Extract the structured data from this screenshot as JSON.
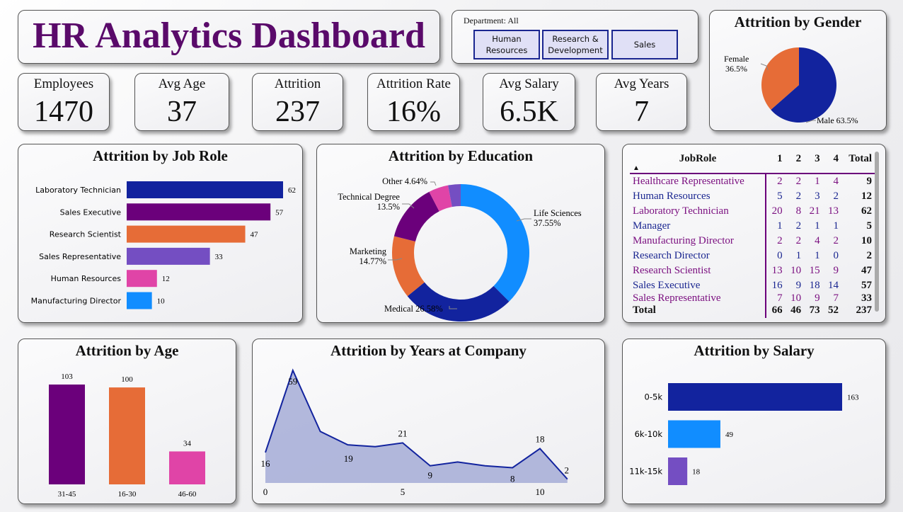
{
  "title": "HR Analytics Dashboard",
  "colors": {
    "dark_blue": "#12239e",
    "purple": "#6b007b",
    "orange": "#e66c37",
    "violet": "#744ec2",
    "pink": "#e044a7",
    "light_blue": "#118dff",
    "title_purple": "#5a0a6a"
  },
  "slicer": {
    "label": "Department: All",
    "options": [
      "Human Resources",
      "Research & Development",
      "Sales"
    ]
  },
  "kpis": [
    {
      "label": "Employees",
      "value": "1470"
    },
    {
      "label": "Avg Age",
      "value": "37"
    },
    {
      "label": "Attrition",
      "value": "237"
    },
    {
      "label": "Attrition Rate",
      "value": "16%"
    },
    {
      "label": "Avg Salary",
      "value": "6.5K"
    },
    {
      "label": "Avg Years",
      "value": "7"
    }
  ],
  "chart_data": [
    {
      "id": "gender",
      "type": "pie",
      "title": "Attrition by Gender",
      "slices": [
        {
          "label": "Male 63.5%",
          "name": "Male",
          "value": 63.5,
          "color": "#12239e"
        },
        {
          "label": "Female 36.5%",
          "name": "Female",
          "value": 36.5,
          "color": "#e66c37"
        }
      ]
    },
    {
      "id": "jobrole",
      "type": "bar",
      "orientation": "horizontal",
      "title": "Attrition by Job Role",
      "categories": [
        "Laboratory Technician",
        "Sales Executive",
        "Research Scientist",
        "Sales Representative",
        "Human Resources",
        "Manufacturing Director"
      ],
      "values": [
        62,
        57,
        47,
        33,
        12,
        10
      ],
      "colors": [
        "#12239e",
        "#6b007b",
        "#e66c37",
        "#744ec2",
        "#e044a7",
        "#118dff"
      ]
    },
    {
      "id": "education",
      "type": "pie",
      "donut": true,
      "title": "Attrition by Education",
      "slices": [
        {
          "name": "Life Sciences",
          "pct": "37.55%",
          "value": 37.55,
          "color": "#118dff"
        },
        {
          "name": "Medical",
          "pct": "26.58%",
          "value": 26.58,
          "color": "#12239e"
        },
        {
          "name": "Marketing",
          "pct": "14.77%",
          "value": 14.77,
          "color": "#e66c37"
        },
        {
          "name": "Technical Degree",
          "pct": "13.5%",
          "value": 13.5,
          "color": "#6b007b"
        },
        {
          "name": "Other",
          "pct": "4.64%",
          "value": 4.64,
          "color": "#e044a7"
        },
        {
          "name": "",
          "pct": "",
          "value": 2.96,
          "color": "#744ec2"
        }
      ]
    },
    {
      "id": "age",
      "type": "bar",
      "title": "Attrition by Age",
      "categories": [
        "31-45",
        "16-30",
        "46-60"
      ],
      "values": [
        103,
        100,
        34
      ],
      "colors": [
        "#6b007b",
        "#e66c37",
        "#e044a7"
      ]
    },
    {
      "id": "years",
      "type": "area",
      "title": "Attrition by Years at Company",
      "x": [
        0,
        1,
        2,
        3,
        4,
        5,
        6,
        7,
        8,
        9,
        10,
        11
      ],
      "y": [
        16,
        59,
        27,
        20,
        19,
        21,
        9,
        11,
        9,
        8,
        18,
        2
      ],
      "labels": {
        "0": "16",
        "1": "59",
        "4": "19",
        "5": "21",
        "6": "9",
        "9": "8",
        "10": "18",
        "11": "2"
      },
      "xticks": [
        0,
        5,
        10
      ]
    },
    {
      "id": "salary",
      "type": "bar",
      "orientation": "horizontal",
      "title": "Attrition by Salary",
      "categories": [
        "0-5k",
        "6k-10k",
        "11k-15k"
      ],
      "values": [
        163,
        49,
        18
      ],
      "colors": [
        "#12239e",
        "#118dff",
        "#744ec2"
      ]
    }
  ],
  "table": {
    "headers": [
      "JobRole",
      "1",
      "2",
      "3",
      "4",
      "Total"
    ],
    "rows": [
      [
        "Healthcare Representative",
        "2",
        "2",
        "1",
        "4",
        "9"
      ],
      [
        "Human Resources",
        "5",
        "2",
        "3",
        "2",
        "12"
      ],
      [
        "Laboratory Technician",
        "20",
        "8",
        "21",
        "13",
        "62"
      ],
      [
        "Manager",
        "1",
        "2",
        "1",
        "1",
        "5"
      ],
      [
        "Manufacturing Director",
        "2",
        "2",
        "4",
        "2",
        "10"
      ],
      [
        "Research Director",
        "0",
        "1",
        "1",
        "0",
        "2"
      ],
      [
        "Research Scientist",
        "13",
        "10",
        "15",
        "9",
        "47"
      ],
      [
        "Sales Executive",
        "16",
        "9",
        "18",
        "14",
        "57"
      ],
      [
        "Sales Representative",
        "7",
        "10",
        "9",
        "7",
        "33"
      ]
    ],
    "total": [
      "Total",
      "66",
      "46",
      "73",
      "52",
      "237"
    ]
  }
}
